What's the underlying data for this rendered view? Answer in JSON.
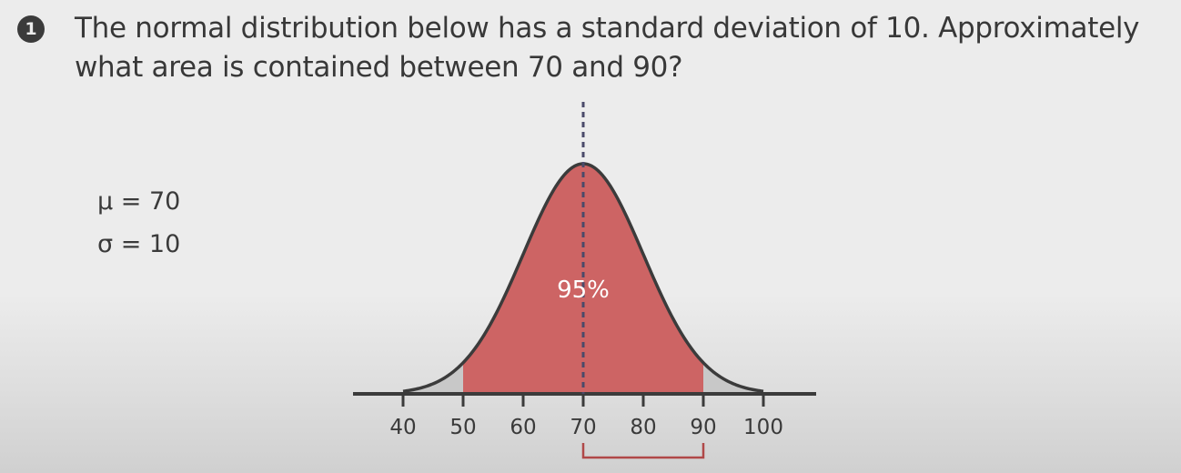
{
  "question": {
    "number": "1",
    "text": "The normal distribution below has a standard deviation of 10. Approximately what area is contained between 70 and 90?"
  },
  "params": {
    "mu": "μ = 70",
    "sigma": "σ = 10"
  },
  "chart_data": {
    "type": "area",
    "distribution": "normal",
    "mean": 70,
    "std_dev": 10,
    "x_ticks": [
      40,
      50,
      60,
      70,
      80,
      90,
      100
    ],
    "x_tick_labels": [
      "40",
      "50",
      "60",
      "70",
      "80",
      "90",
      "100"
    ],
    "xlim": [
      36,
      108
    ],
    "shaded_range": [
      50,
      90
    ],
    "shaded_label": "95%",
    "mean_line": 70,
    "bracket_range": [
      70,
      90
    ],
    "grid": false,
    "colors": {
      "shaded": "#cd6464",
      "tails": "#c8c8c8",
      "curve": "#3b3b3b",
      "axis": "#3b3b3b",
      "mean_line": "#4a4a6a",
      "bracket": "#b04848"
    }
  }
}
